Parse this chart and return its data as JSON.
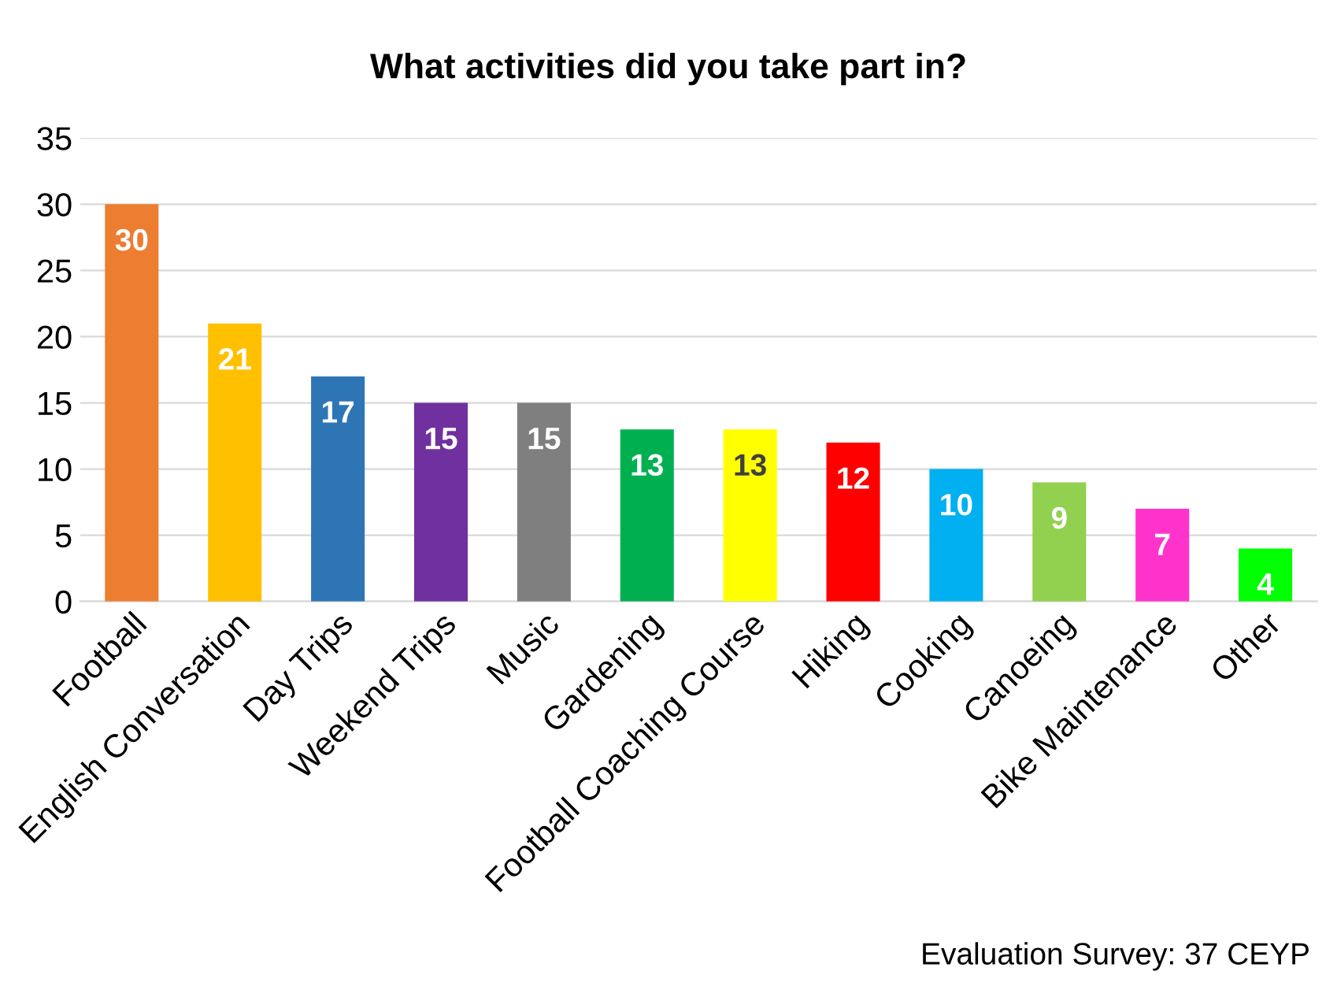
{
  "chart_data": {
    "type": "bar",
    "title": "What activities did you take part in?",
    "categories": [
      "Football",
      "English Conversation",
      "Day Trips",
      "Weekend Trips",
      "Music",
      "Gardening",
      "Football Coaching Course",
      "Hiking",
      "Cooking",
      "Canoeing",
      "Bike Maintenance",
      "Other"
    ],
    "values": [
      30,
      21,
      17,
      15,
      15,
      13,
      13,
      12,
      10,
      9,
      7,
      4
    ],
    "colors": [
      "#ed7d31",
      "#ffc000",
      "#2e75b6",
      "#7030a0",
      "#7f7f7f",
      "#00b050",
      "#ffff00",
      "#ff0000",
      "#00b0f0",
      "#92d050",
      "#ff33cc",
      "#00ff00"
    ],
    "ylim": [
      0,
      35
    ],
    "yticks": [
      0,
      5,
      10,
      15,
      20,
      25,
      30,
      35
    ],
    "grid": "y",
    "data_labels": true,
    "annotations": [
      "Evaluation Survey: 37 CEYP"
    ]
  }
}
